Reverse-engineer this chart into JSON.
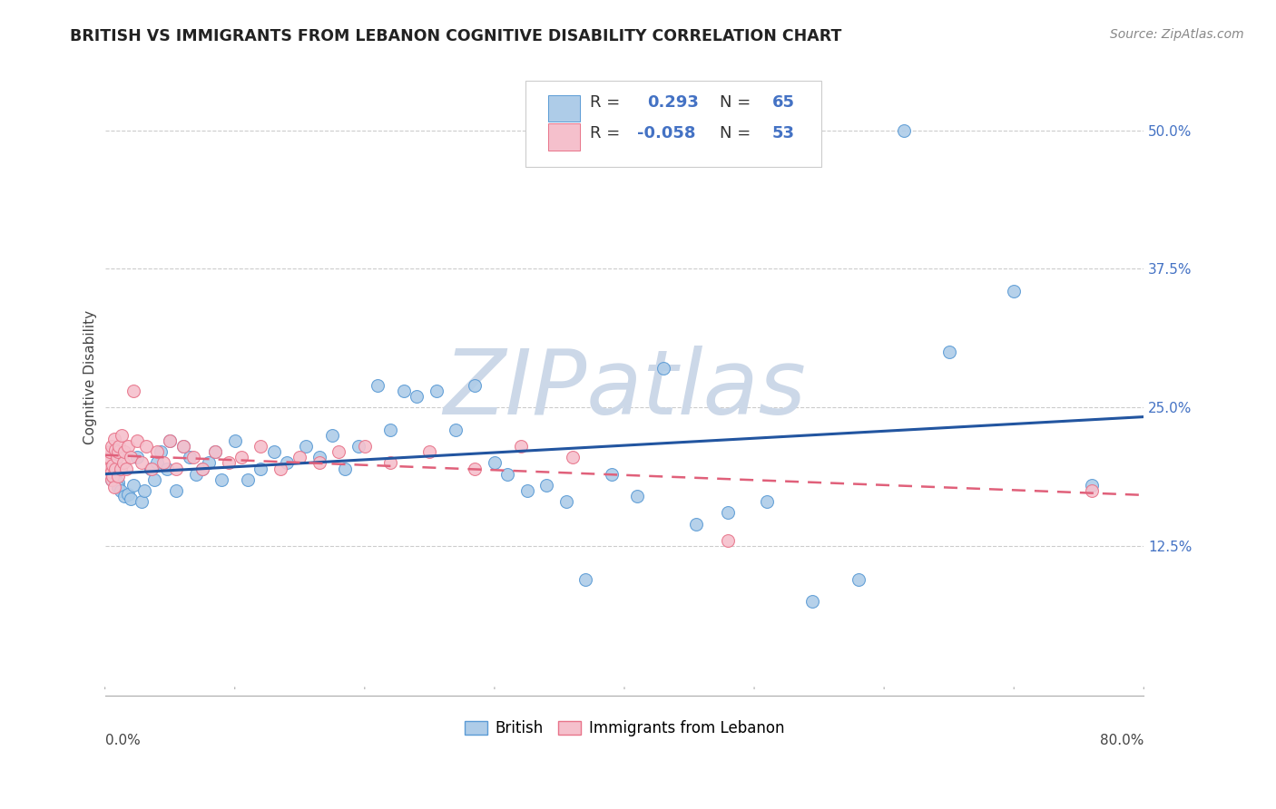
{
  "title": "BRITISH VS IMMIGRANTS FROM LEBANON COGNITIVE DISABILITY CORRELATION CHART",
  "source": "Source: ZipAtlas.com",
  "ylabel": "Cognitive Disability",
  "british_color": "#5b9bd5",
  "lebanon_color": "#e8748a",
  "british_fill": "#aecce8",
  "lebanon_fill": "#f5c0cc",
  "trendline_british_color": "#2255a0",
  "trendline_lebanon_color": "#e0607a",
  "watermark": "ZIPatlas",
  "watermark_color": "#ccd8e8",
  "background_color": "#ffffff",
  "title_fontsize": 12.5,
  "axis_label_fontsize": 11,
  "tick_fontsize": 11,
  "legend_fontsize": 13,
  "source_fontsize": 10,
  "ytick_color": "#4472c4"
}
